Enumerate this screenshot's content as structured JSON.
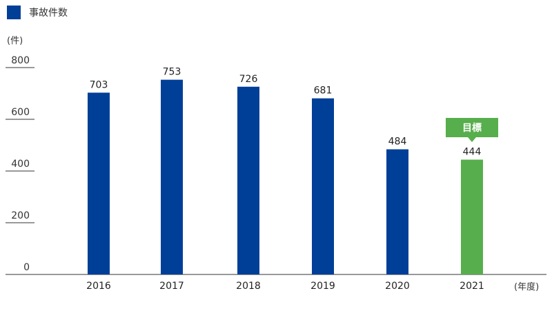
{
  "legend": {
    "label": "事故件数",
    "color": "#003f98"
  },
  "y_unit": "(件)",
  "x_unit": "(年度)",
  "target_label": "目標",
  "colors": {
    "actual": "#003f98",
    "target": "#57ae4c",
    "axis": "#333333"
  },
  "chart_data": {
    "type": "bar",
    "categories": [
      "2016",
      "2017",
      "2018",
      "2019",
      "2020",
      "2021"
    ],
    "values": [
      703,
      753,
      726,
      681,
      484,
      444
    ],
    "series": [
      {
        "name": "事故件数",
        "values": [
          703,
          753,
          726,
          681,
          484,
          null
        ]
      },
      {
        "name": "目標",
        "values": [
          null,
          null,
          null,
          null,
          null,
          444
        ]
      }
    ],
    "ylim": [
      0,
      800
    ],
    "yticks": [
      0,
      200,
      400,
      600,
      800
    ],
    "legend_position": "top-left",
    "grid": false
  }
}
